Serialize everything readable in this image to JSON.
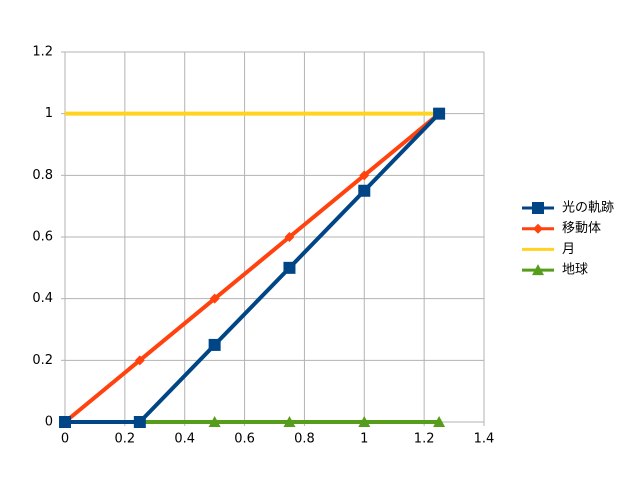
{
  "chart_data": {
    "type": "line",
    "xlim": [
      0,
      1.4
    ],
    "xticks": [
      0,
      0.2,
      0.4,
      0.6,
      0.8,
      1,
      1.2,
      1.4
    ],
    "ylim": [
      0,
      1.2
    ],
    "yticks": [
      0,
      0.2,
      0.4,
      0.6,
      0.8,
      1,
      1.2
    ],
    "grid": true,
    "legend": "right",
    "series": [
      {
        "name": "光の軌跡",
        "color": "#004586",
        "marker": "square",
        "x": [
          0,
          0.25,
          0.5,
          0.75,
          1,
          1.25
        ],
        "values": [
          0,
          0,
          0.25,
          0.5,
          0.75,
          1
        ]
      },
      {
        "name": "移動体",
        "color": "#ff420e",
        "marker": "diamond",
        "x": [
          0,
          0.25,
          0.5,
          0.75,
          1,
          1.25
        ],
        "values": [
          0,
          0.2,
          0.4,
          0.6,
          0.8,
          1
        ]
      },
      {
        "name": "月",
        "color": "#ffd320",
        "marker": "none",
        "x": [
          0,
          1.25
        ],
        "values": [
          1,
          1
        ]
      },
      {
        "name": "地球",
        "color": "#579d1c",
        "marker": "triangle",
        "x": [
          0.25,
          0.5,
          0.75,
          1,
          1.25
        ],
        "values": [
          0,
          0,
          0,
          0,
          0
        ]
      }
    ]
  }
}
